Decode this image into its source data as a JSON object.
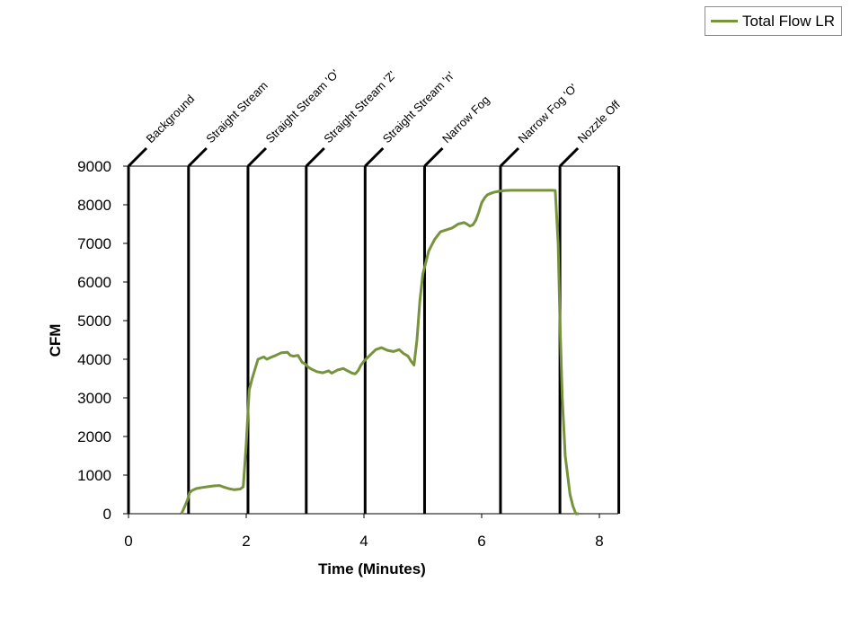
{
  "chart_data": {
    "type": "line",
    "title": "",
    "xlabel": "Time (Minutes)",
    "ylabel": "CFM",
    "xlim": [
      0,
      8.4
    ],
    "ylim": [
      0,
      9000
    ],
    "xticks": [
      0,
      2,
      4,
      6,
      8
    ],
    "yticks": [
      0,
      1000,
      2000,
      3000,
      4000,
      5000,
      6000,
      7000,
      8000,
      9000
    ],
    "grid": false,
    "legend_position": "top-right",
    "series": [
      {
        "name": "Total Flow LR",
        "color": "#77933c",
        "x": [
          0.9,
          0.93,
          1.0,
          1.04,
          1.08,
          1.15,
          1.25,
          1.35,
          1.45,
          1.55,
          1.6,
          1.7,
          1.8,
          1.9,
          1.95,
          2.0,
          2.05,
          2.1,
          2.2,
          2.3,
          2.35,
          2.42,
          2.5,
          2.6,
          2.7,
          2.75,
          2.8,
          2.88,
          2.95,
          3.0,
          3.05,
          3.1,
          3.2,
          3.3,
          3.4,
          3.45,
          3.5,
          3.55,
          3.65,
          3.72,
          3.8,
          3.85,
          3.9,
          3.95,
          4.0,
          4.1,
          4.2,
          4.3,
          4.4,
          4.5,
          4.6,
          4.67,
          4.75,
          4.8,
          4.85,
          4.9,
          4.95,
          5.0,
          5.05,
          5.1,
          5.2,
          5.3,
          5.4,
          5.5,
          5.6,
          5.7,
          5.75,
          5.8,
          5.85,
          5.9,
          5.95,
          6.0,
          6.05,
          6.1,
          6.2,
          6.3,
          6.35,
          6.4,
          6.5,
          6.6,
          6.8,
          7.0,
          7.2,
          7.25,
          7.3,
          7.33,
          7.37,
          7.42,
          7.5,
          7.55,
          7.6,
          7.65
        ],
        "y": [
          0,
          100,
          350,
          550,
          600,
          650,
          680,
          700,
          720,
          730,
          700,
          650,
          620,
          640,
          700,
          1800,
          3200,
          3500,
          4000,
          4060,
          4000,
          4050,
          4100,
          4170,
          4180,
          4100,
          4080,
          4100,
          3920,
          3880,
          3800,
          3750,
          3680,
          3650,
          3700,
          3640,
          3680,
          3720,
          3760,
          3700,
          3640,
          3620,
          3700,
          3850,
          3950,
          4100,
          4250,
          4300,
          4230,
          4200,
          4250,
          4150,
          4080,
          3950,
          3850,
          4500,
          5500,
          6200,
          6500,
          6800,
          7100,
          7300,
          7350,
          7400,
          7500,
          7540,
          7500,
          7450,
          7480,
          7600,
          7800,
          8050,
          8180,
          8260,
          8320,
          8350,
          8360,
          8370,
          8375,
          8375,
          8375,
          8375,
          8375,
          8370,
          7000,
          5000,
          3000,
          1500,
          500,
          200,
          0,
          0
        ]
      }
    ],
    "phase_markers": [
      {
        "label": "Background",
        "x": 0.0
      },
      {
        "label": "Straight Stream",
        "x": 1.02
      },
      {
        "label": "Straight Stream 'O'",
        "x": 2.03
      },
      {
        "label": "Straight Stream 'Z'",
        "x": 3.02
      },
      {
        "label": "Straight Stream 'n'",
        "x": 4.02
      },
      {
        "label": "Narrow Fog",
        "x": 5.03
      },
      {
        "label": "Narrow Fog 'O'",
        "x": 6.32
      },
      {
        "label": "Nozzle Off",
        "x": 7.33
      },
      {
        "label": "",
        "x": 8.33
      }
    ]
  }
}
